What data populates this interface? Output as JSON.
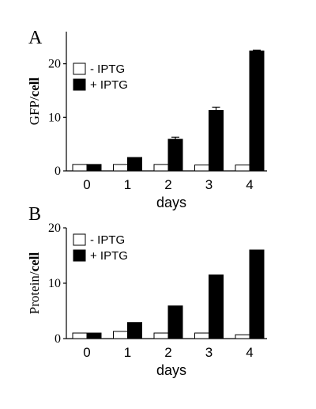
{
  "chart_data": [
    {
      "panel": "A",
      "type": "bar",
      "ylabel_prefix": "GFP/",
      "ylabel_bold": "cell",
      "xlabel": "days",
      "categories": [
        "0",
        "1",
        "2",
        "3",
        "4"
      ],
      "yticks": [
        0,
        10,
        20
      ],
      "ylim": [
        0,
        26
      ],
      "legend_position": "top-left",
      "series": [
        {
          "name": "- IPTG",
          "style": "open",
          "values": [
            1.2,
            1.2,
            1.2,
            1.1,
            1.1
          ]
        },
        {
          "name": "+ IPTG",
          "style": "filled",
          "values": [
            1.2,
            2.5,
            5.9,
            11.3,
            22.4
          ],
          "errors": [
            0,
            0,
            0.4,
            0.6,
            0.15
          ]
        }
      ]
    },
    {
      "panel": "B",
      "type": "bar",
      "ylabel_prefix": "Protein/",
      "ylabel_bold": "cell",
      "xlabel": "days",
      "categories": [
        "0",
        "1",
        "2",
        "3",
        "4"
      ],
      "yticks": [
        0,
        10,
        20
      ],
      "ylim": [
        0,
        20
      ],
      "legend_position": "top-left",
      "series": [
        {
          "name": "- IPTG",
          "style": "open",
          "values": [
            1.0,
            1.3,
            1.0,
            1.0,
            0.7
          ]
        },
        {
          "name": "+ IPTG",
          "style": "filled",
          "values": [
            1.0,
            2.9,
            5.9,
            11.5,
            16.0
          ]
        }
      ]
    }
  ],
  "colors": {
    "open_fill": "#ffffff",
    "filled_fill": "#000000",
    "stroke": "#000000"
  }
}
